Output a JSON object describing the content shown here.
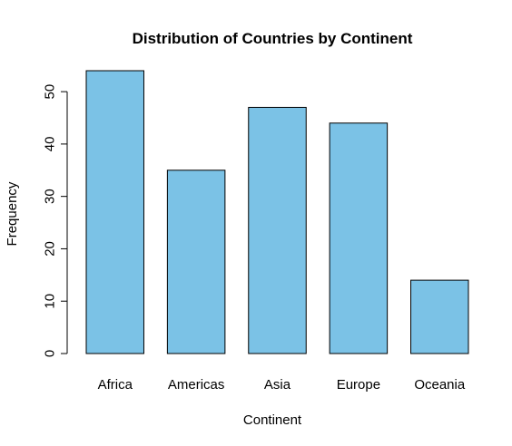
{
  "chart_data": {
    "type": "bar",
    "title": "Distribution of Countries by Continent",
    "xlabel": "Continent",
    "ylabel": "Frequency",
    "categories": [
      "Africa",
      "Americas",
      "Asia",
      "Europe",
      "Oceania"
    ],
    "values": [
      54,
      35,
      47,
      44,
      14
    ],
    "ylim": [
      0,
      54
    ],
    "yticks": [
      0,
      10,
      20,
      30,
      40,
      50
    ],
    "bar_color": "#7bc2e6",
    "grid": false,
    "legend": "none"
  }
}
